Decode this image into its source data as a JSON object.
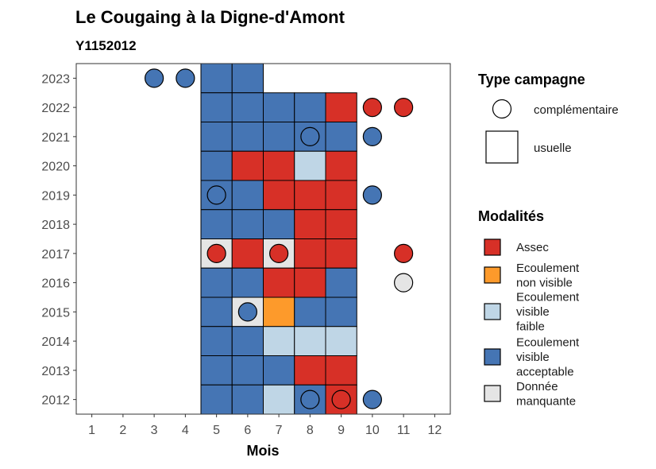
{
  "chart_data": {
    "type": "heatmap",
    "title": "Le Cougaing à la Digne-d'Amont",
    "subtitle": "Y1152012",
    "xlabel": "Mois",
    "ylabel": "",
    "x_ticks": [
      1,
      2,
      3,
      4,
      5,
      6,
      7,
      8,
      9,
      10,
      11,
      12
    ],
    "y_ticks": [
      2012,
      2013,
      2014,
      2015,
      2016,
      2017,
      2018,
      2019,
      2020,
      2021,
      2022,
      2023
    ],
    "xlim": [
      0.5,
      12.5
    ],
    "ylim": [
      2011.5,
      2023.5
    ],
    "modalites": [
      {
        "key": "assec",
        "label_lines": [
          "Assec"
        ],
        "color": "#d73027"
      },
      {
        "key": "nonvisible",
        "label_lines": [
          "Ecoulement",
          "non visible"
        ],
        "color": "#fd9a2b"
      },
      {
        "key": "faible",
        "label_lines": [
          "Ecoulement",
          "visible",
          "faible"
        ],
        "color": "#bfd6e6"
      },
      {
        "key": "acceptable",
        "label_lines": [
          "Ecoulement",
          "visible",
          "acceptable"
        ],
        "color": "#4575b4"
      },
      {
        "key": "manquante",
        "label_lines": [
          "Donnée",
          "manquante"
        ],
        "color": "#e5e5e5"
      }
    ],
    "type_campagne": {
      "title": "Type campagne",
      "items": [
        {
          "key": "complementaire",
          "label": "complémentaire",
          "shape": "circle"
        },
        {
          "key": "usuelle",
          "label": "usuelle",
          "shape": "square"
        }
      ]
    },
    "modalites_title": "Modalités",
    "usuelle": [
      {
        "year": 2023,
        "month": 5,
        "v": "acceptable"
      },
      {
        "year": 2023,
        "month": 6,
        "v": "acceptable"
      },
      {
        "year": 2022,
        "month": 5,
        "v": "acceptable"
      },
      {
        "year": 2022,
        "month": 6,
        "v": "acceptable"
      },
      {
        "year": 2022,
        "month": 7,
        "v": "acceptable"
      },
      {
        "year": 2022,
        "month": 8,
        "v": "acceptable"
      },
      {
        "year": 2022,
        "month": 9,
        "v": "assec"
      },
      {
        "year": 2021,
        "month": 5,
        "v": "acceptable"
      },
      {
        "year": 2021,
        "month": 6,
        "v": "acceptable"
      },
      {
        "year": 2021,
        "month": 7,
        "v": "acceptable"
      },
      {
        "year": 2021,
        "month": 8,
        "v": "acceptable"
      },
      {
        "year": 2021,
        "month": 9,
        "v": "acceptable"
      },
      {
        "year": 2020,
        "month": 5,
        "v": "acceptable"
      },
      {
        "year": 2020,
        "month": 6,
        "v": "assec"
      },
      {
        "year": 2020,
        "month": 7,
        "v": "assec"
      },
      {
        "year": 2020,
        "month": 8,
        "v": "faible"
      },
      {
        "year": 2020,
        "month": 9,
        "v": "assec"
      },
      {
        "year": 2019,
        "month": 5,
        "v": "acceptable"
      },
      {
        "year": 2019,
        "month": 6,
        "v": "acceptable"
      },
      {
        "year": 2019,
        "month": 7,
        "v": "assec"
      },
      {
        "year": 2019,
        "month": 8,
        "v": "assec"
      },
      {
        "year": 2019,
        "month": 9,
        "v": "assec"
      },
      {
        "year": 2018,
        "month": 5,
        "v": "acceptable"
      },
      {
        "year": 2018,
        "month": 6,
        "v": "acceptable"
      },
      {
        "year": 2018,
        "month": 7,
        "v": "acceptable"
      },
      {
        "year": 2018,
        "month": 8,
        "v": "assec"
      },
      {
        "year": 2018,
        "month": 9,
        "v": "assec"
      },
      {
        "year": 2017,
        "month": 5,
        "v": "manquante"
      },
      {
        "year": 2017,
        "month": 6,
        "v": "assec"
      },
      {
        "year": 2017,
        "month": 7,
        "v": "manquante"
      },
      {
        "year": 2017,
        "month": 8,
        "v": "assec"
      },
      {
        "year": 2017,
        "month": 9,
        "v": "assec"
      },
      {
        "year": 2016,
        "month": 5,
        "v": "acceptable"
      },
      {
        "year": 2016,
        "month": 6,
        "v": "acceptable"
      },
      {
        "year": 2016,
        "month": 7,
        "v": "assec"
      },
      {
        "year": 2016,
        "month": 8,
        "v": "assec"
      },
      {
        "year": 2016,
        "month": 9,
        "v": "acceptable"
      },
      {
        "year": 2015,
        "month": 5,
        "v": "acceptable"
      },
      {
        "year": 2015,
        "month": 6,
        "v": "manquante"
      },
      {
        "year": 2015,
        "month": 7,
        "v": "nonvisible"
      },
      {
        "year": 2015,
        "month": 8,
        "v": "acceptable"
      },
      {
        "year": 2015,
        "month": 9,
        "v": "acceptable"
      },
      {
        "year": 2014,
        "month": 5,
        "v": "acceptable"
      },
      {
        "year": 2014,
        "month": 6,
        "v": "acceptable"
      },
      {
        "year": 2014,
        "month": 7,
        "v": "faible"
      },
      {
        "year": 2014,
        "month": 8,
        "v": "faible"
      },
      {
        "year": 2014,
        "month": 9,
        "v": "faible"
      },
      {
        "year": 2013,
        "month": 5,
        "v": "acceptable"
      },
      {
        "year": 2013,
        "month": 6,
        "v": "acceptable"
      },
      {
        "year": 2013,
        "month": 7,
        "v": "acceptable"
      },
      {
        "year": 2013,
        "month": 8,
        "v": "assec"
      },
      {
        "year": 2013,
        "month": 9,
        "v": "assec"
      },
      {
        "year": 2012,
        "month": 5,
        "v": "acceptable"
      },
      {
        "year": 2012,
        "month": 6,
        "v": "acceptable"
      },
      {
        "year": 2012,
        "month": 7,
        "v": "faible"
      },
      {
        "year": 2012,
        "month": 8,
        "v": "acceptable"
      },
      {
        "year": 2012,
        "month": 9,
        "v": "assec"
      }
    ],
    "complementaire": [
      {
        "year": 2023,
        "month": 3,
        "v": "acceptable"
      },
      {
        "year": 2023,
        "month": 4,
        "v": "acceptable"
      },
      {
        "year": 2022,
        "month": 10,
        "v": "assec"
      },
      {
        "year": 2022,
        "month": 11,
        "v": "assec"
      },
      {
        "year": 2021,
        "month": 8,
        "v": "acceptable"
      },
      {
        "year": 2021,
        "month": 10,
        "v": "acceptable"
      },
      {
        "year": 2019,
        "month": 5,
        "v": "acceptable"
      },
      {
        "year": 2019,
        "month": 10,
        "v": "acceptable"
      },
      {
        "year": 2017,
        "month": 5,
        "v": "assec"
      },
      {
        "year": 2017,
        "month": 7,
        "v": "assec"
      },
      {
        "year": 2017,
        "month": 11,
        "v": "assec"
      },
      {
        "year": 2016,
        "month": 11,
        "v": "manquante"
      },
      {
        "year": 2015,
        "month": 6,
        "v": "acceptable"
      },
      {
        "year": 2012,
        "month": 8,
        "v": "acceptable"
      },
      {
        "year": 2012,
        "month": 9,
        "v": "assec"
      },
      {
        "year": 2012,
        "month": 10,
        "v": "acceptable"
      }
    ]
  }
}
